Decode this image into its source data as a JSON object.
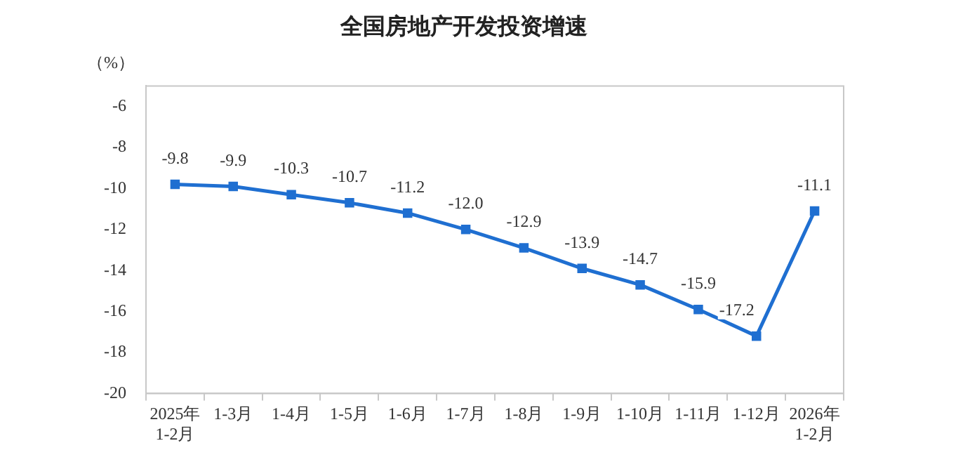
{
  "chart_data": {
    "type": "line",
    "title": "全国房地产开发投资增速",
    "ylabel": "（%）",
    "categories": [
      "2025年\n1-2月",
      "1-3月",
      "1-4月",
      "1-5月",
      "1-6月",
      "1-7月",
      "1-8月",
      "1-9月",
      "1-10月",
      "1-11月",
      "1-12月",
      "2026年\n1-2月"
    ],
    "series": [
      {
        "color": "#1f6fd1",
        "values": [
          -9.8,
          -9.9,
          -10.3,
          -10.7,
          -11.2,
          -12.0,
          -12.9,
          -13.9,
          -14.7,
          -15.9,
          -17.2,
          -11.1
        ]
      }
    ],
    "value_labels": [
      "-9.8",
      "-9.9",
      "-10.3",
      "-10.7",
      "-11.2",
      "-12.0",
      "-12.9",
      "-13.9",
      "-14.7",
      "-15.9",
      "-17.2",
      "-11.1"
    ],
    "ylim": [
      -20,
      -5
    ],
    "yticks": [
      -6,
      -8,
      -10,
      -12,
      -14,
      -16,
      -18,
      -20
    ],
    "grid": false,
    "legend": false,
    "marker": "square",
    "line_style": "solid"
  }
}
